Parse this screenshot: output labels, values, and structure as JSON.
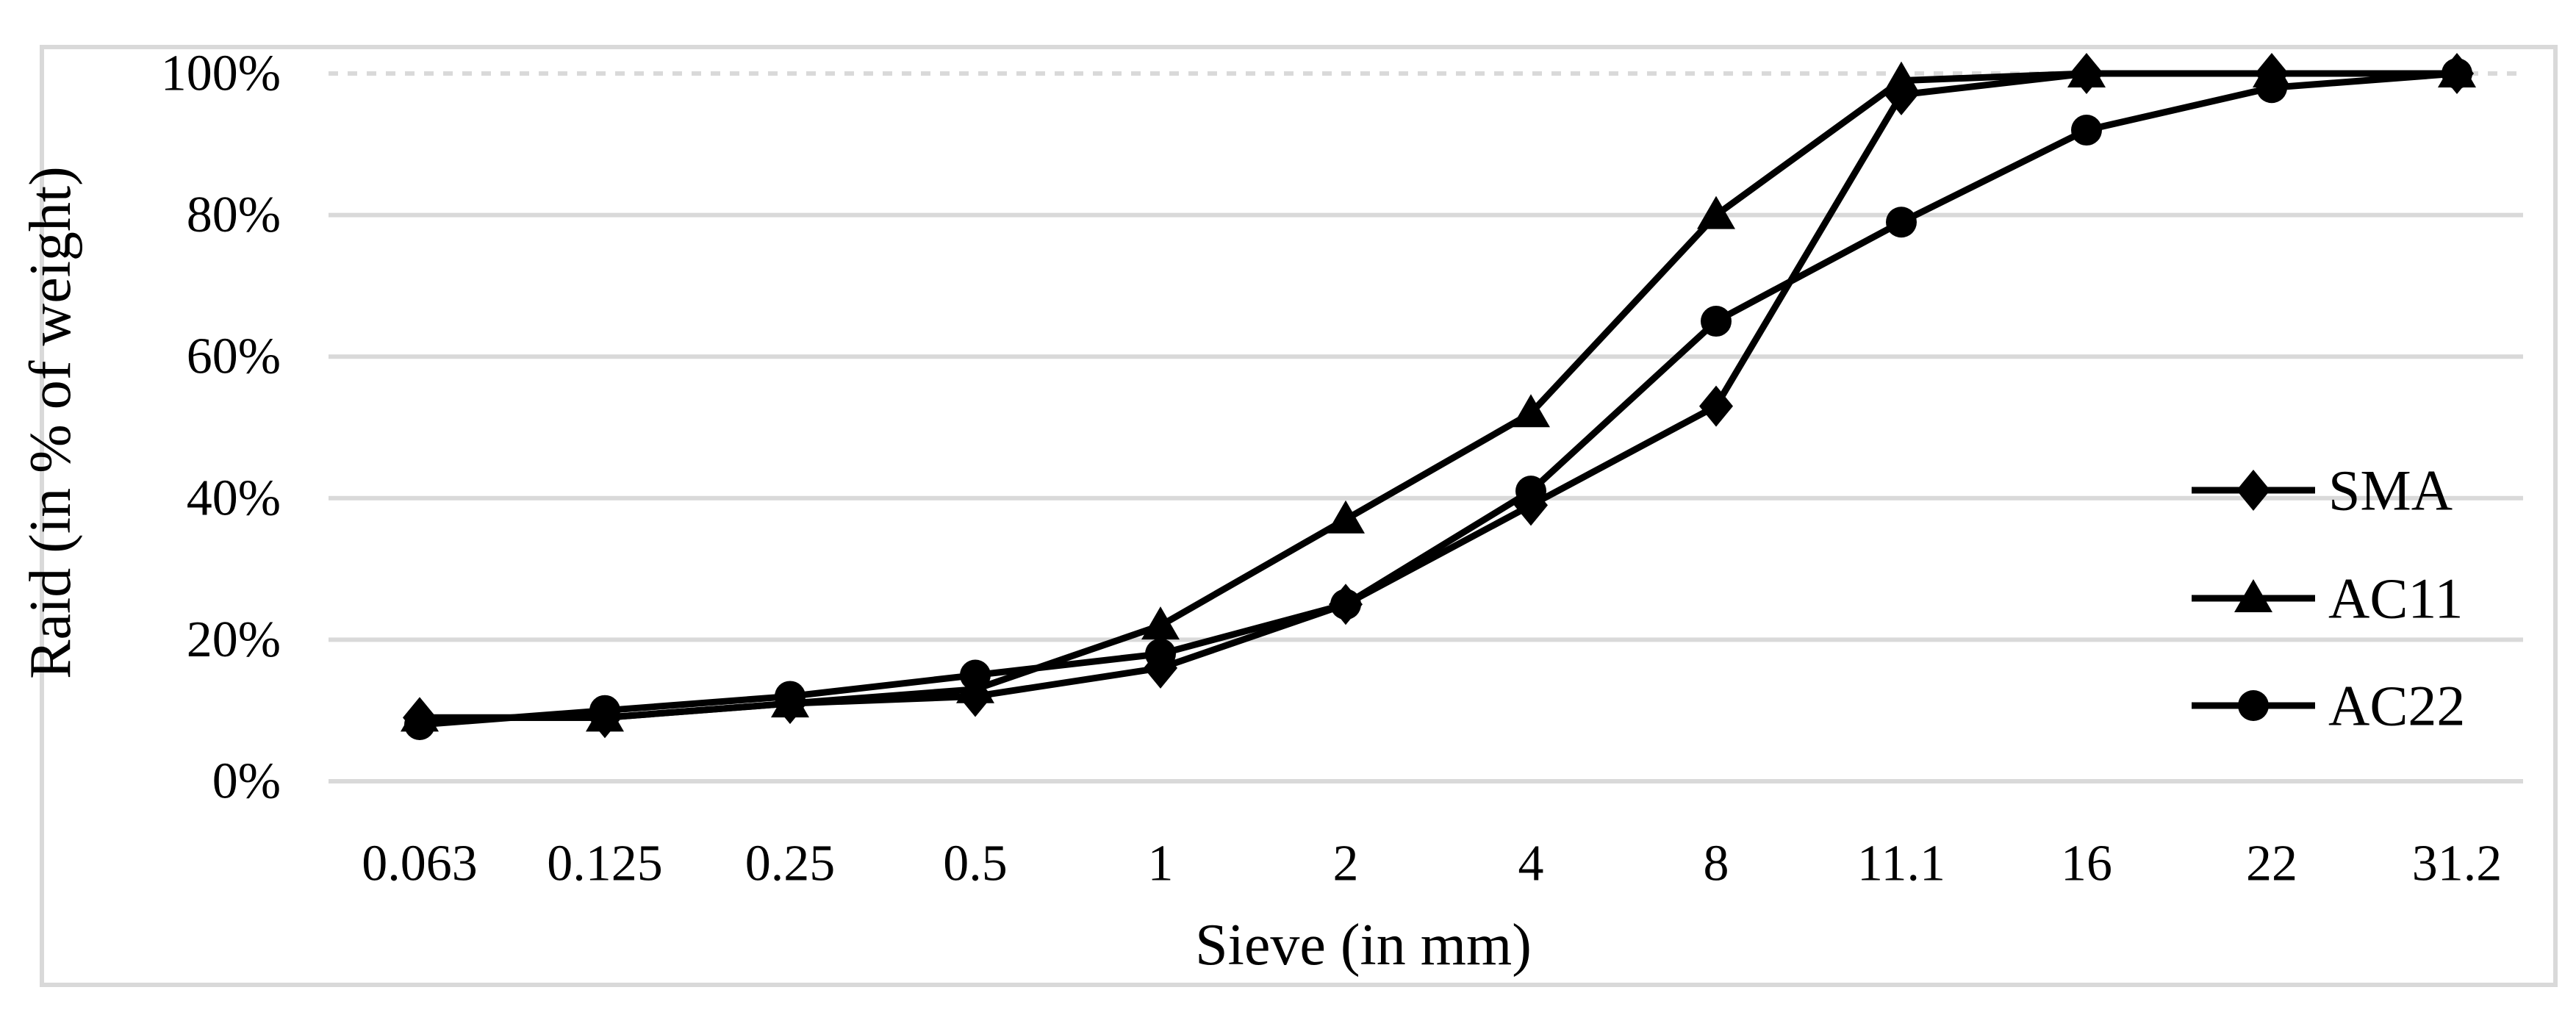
{
  "figure": {
    "background_color": "#ffffff",
    "frame_color": "#d9d9d9",
    "gridline_color": "#d9d9d9",
    "series_color": "#000000"
  },
  "chart_data": {
    "type": "line",
    "title": "",
    "xlabel": "Sieve (in mm)",
    "ylabel": "Raid (in % of weight)",
    "categories": [
      "0.063",
      "0.125",
      "0.25",
      "0.5",
      "1",
      "2",
      "4",
      "8",
      "11.1",
      "16",
      "22",
      "31.2"
    ],
    "series": [
      {
        "name": "SMA",
        "marker": "diamond",
        "values": [
          9,
          9,
          11,
          12,
          16,
          25,
          39,
          53,
          97,
          100,
          100,
          100
        ]
      },
      {
        "name": "AC11",
        "marker": "triangle",
        "values": [
          9,
          9,
          11,
          13,
          22,
          37,
          52,
          80,
          99,
          100,
          100,
          100
        ]
      },
      {
        "name": "AC22",
        "marker": "circle",
        "values": [
          8,
          10,
          12,
          15,
          18,
          25,
          41,
          65,
          79,
          92,
          98,
          100
        ]
      }
    ],
    "ylim": [
      0,
      100
    ],
    "y_tick_step": 20,
    "y_tick_labels": [
      "0%",
      "20%",
      "40%",
      "60%",
      "80%",
      "100%"
    ],
    "grid": true,
    "top_gridline_style": "dotted",
    "legend_position": "right-inside",
    "legend_entries": [
      "SMA",
      "AC11",
      "AC22"
    ],
    "line_color": "#000000",
    "marker_color": "#000000"
  }
}
